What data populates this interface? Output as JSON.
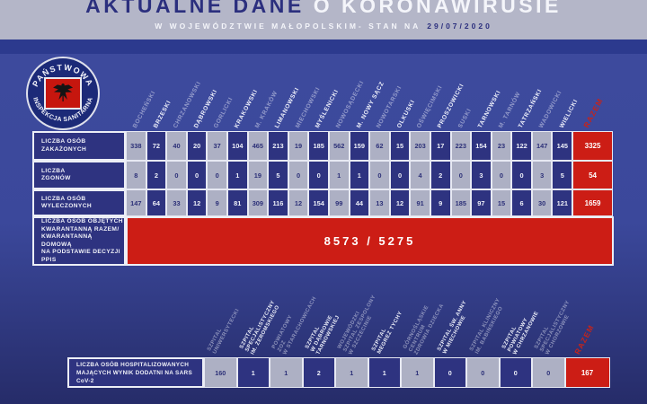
{
  "header": {
    "title_dark": "AKTUALNE DANE",
    "title_light": "O KORONAWIRUSIE",
    "subtitle": "W WOJEWÓDZTWIE MAŁOPOLSKIM- STAN NA",
    "date": "29/07/2020"
  },
  "logo": {
    "top": "PAŃSTWOWA",
    "bottom": "INSPEKCJA SANITARNA"
  },
  "totals_label": "RAZEM",
  "colors": {
    "accent_red": "#cc1d15",
    "navy_cell": "#2e3380",
    "light_cell": "#adb0c4",
    "top_band": "#b4b6c8",
    "background_blue": "#3b489b"
  },
  "chart_data": [
    {
      "type": "table",
      "categories": [
        "BOCHEŃSKI",
        "BRZESKI",
        "CHRZANOWSKI",
        "DĄBROWSKI",
        "GORLICKI",
        "KRAKOWSKI",
        "M. KRAKÓW",
        "LIMANOWSKI",
        "MIECHOWSKI",
        "MYŚLENICKI",
        "NOWOSĄDECKI",
        "M. NOWY SĄCZ",
        "NOWOTARSKI",
        "OLKUSKI",
        "OŚWIĘCIMSKI",
        "PROSZOWICKI",
        "SUSKI",
        "TARNOWSKI",
        "M. TARNÓW",
        "TATRZAŃSKI",
        "WADOWICKI",
        "WIELICKI"
      ],
      "total_label": "RAZEM",
      "series": [
        {
          "name": "LICZBA OSÓB\nZAKAŻONYCH",
          "values": [
            338,
            72,
            40,
            20,
            37,
            104,
            465,
            213,
            19,
            185,
            562,
            159,
            62,
            15,
            203,
            17,
            223,
            154,
            23,
            122,
            147,
            145
          ],
          "total": 3325
        },
        {
          "name": "LICZBA\nZGONÓW",
          "values": [
            8,
            2,
            0,
            0,
            0,
            1,
            19,
            5,
            0,
            0,
            1,
            1,
            0,
            0,
            4,
            2,
            0,
            3,
            0,
            0,
            3,
            5
          ],
          "total": 54
        },
        {
          "name": "LICZBA OSÓB\nWYLECZONYCH",
          "values": [
            147,
            64,
            33,
            12,
            9,
            81,
            309,
            116,
            12,
            154,
            99,
            44,
            13,
            12,
            91,
            9,
            185,
            97,
            15,
            6,
            30,
            121
          ],
          "total": 1659
        }
      ],
      "quarantine": {
        "label": "LICZBA OSÓB OBJĘTYCH\nKWARANTANNĄ RAZEM/\nKWARANTANNĄ DOMOWĄ\nNA PODSTAWIE DECYZJI PPIS",
        "value": "8573 / 5275"
      }
    },
    {
      "type": "table",
      "categories": [
        "SZPITAL UNIWERSYTECKI",
        "SZPITAL SPECJALISTYCZNY IM. ŻEROMSKIEGO",
        "POWIATOWY ZOZ W STARACHOWICACH",
        "SZPITAL W DĄBROWIE TARNOWSKIEJ",
        "WOJEWÓDZKI SZPITAL ZESPOLONY W SZCZECINIE",
        "SZPITAL MEGREZ TYCHY",
        "GÓRNOŚLĄSKIE CENTRUM ZDROWIA DZIECKA",
        "SZPITAL ŚW. ANNY W MIECHOWIE",
        "SZPITAL KLINICZNY IM. BABIŃSKIEGO",
        "SZPITAL POWIATOWY W CHRZANOWIE",
        "SZPITAL SPECJALISTYCZNY W CHORZOWIE"
      ],
      "header_lines": [
        [
          "SZPITAL",
          "UNIWERSYTECKI"
        ],
        [
          "SZPITAL",
          "SPECJALISTYCZNY",
          "IM. ŻEROMSKIEGO"
        ],
        [
          "POWIATOWY",
          "ZOZ",
          "W STARACHOWICACH"
        ],
        [
          "SZPITAL",
          "W DĄBROWIE",
          "TARNOWSKIEJ"
        ],
        [
          "WOJEWÓDZKI",
          "SZPITAL ZESPOLONY",
          "W SZCZECINIE"
        ],
        [
          "SZPITAL",
          "MEGREZ TYCHY"
        ],
        [
          "GÓRNOŚLĄSKIE",
          "CENTRUM",
          "ZDROWIA DZIECKA"
        ],
        [
          "SZPITAL ŚW. ANNY",
          "W MIECHOWIE"
        ],
        [
          "SZPITAL KLINICZNY",
          "IM. BABIŃSKIEGO"
        ],
        [
          "SZPITAL",
          "POWIATOWY",
          "W CHRZANOWIE"
        ],
        [
          "SZPITAL",
          "SPECJALISTYCZNY",
          "W CHORZOWIE"
        ]
      ],
      "total_label": "RAZEM",
      "series": [
        {
          "name": "LICZBA OSÓB HOSPITALIZOWANYCH\nMAJĄCYCH WYNIK DODATNI NA SARS CoV-2",
          "values": [
            160,
            1,
            1,
            2,
            1,
            1,
            1,
            0,
            0,
            0,
            0
          ],
          "total": 167
        }
      ]
    }
  ]
}
